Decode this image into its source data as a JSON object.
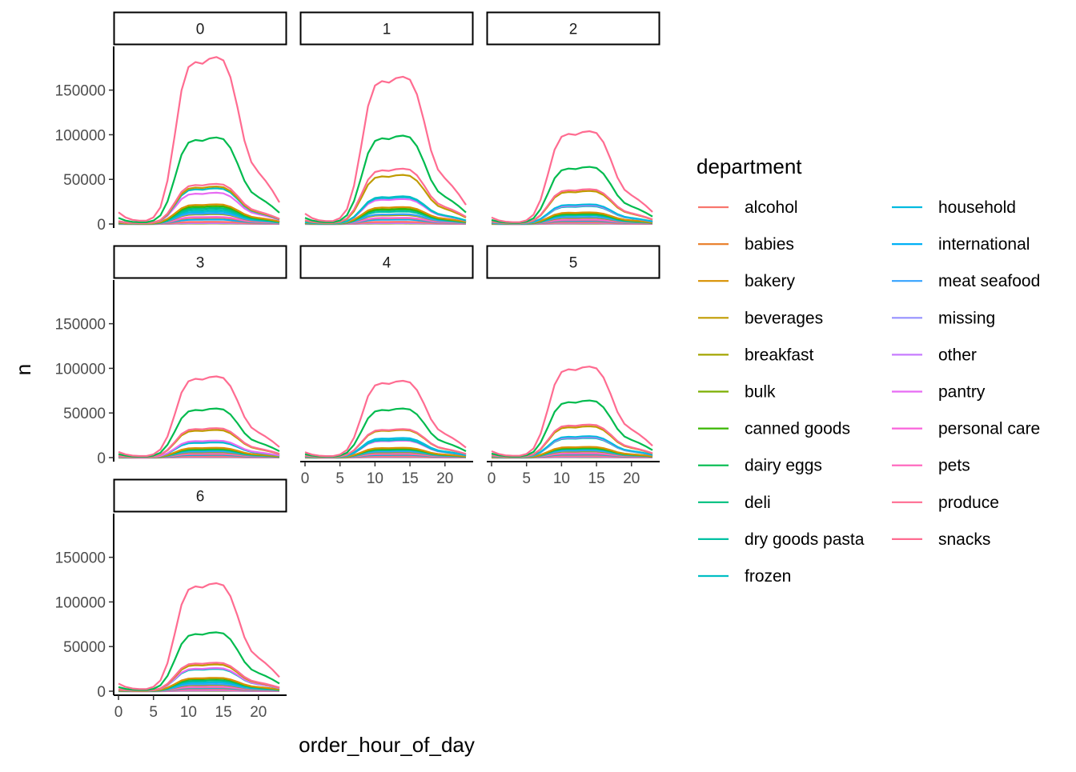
{
  "chart_data": {
    "type": "line",
    "facet_var": "order_dow",
    "facets": [
      "0",
      "1",
      "2",
      "3",
      "4",
      "5",
      "6"
    ],
    "xlabel": "order_hour_of_day",
    "ylabel": "n",
    "x_ticks": [
      "0",
      "5",
      "10",
      "15",
      "20"
    ],
    "y_ticks": [
      "0",
      "50000",
      "100000",
      "150000"
    ],
    "xlim": [
      0,
      23
    ],
    "ylim": [
      0,
      190000
    ],
    "grid": false,
    "legend_title": "department",
    "legend_position": "right",
    "departments": [
      "alcohol",
      "babies",
      "bakery",
      "beverages",
      "breakfast",
      "bulk",
      "canned goods",
      "dairy eggs",
      "deli",
      "dry goods pasta",
      "frozen",
      "household",
      "international",
      "meat seafood",
      "missing",
      "other",
      "pantry",
      "personal care",
      "pets",
      "produce",
      "snacks"
    ],
    "colors": [
      "#F8766D",
      "#EA8331",
      "#D89000",
      "#C09B00",
      "#A3A500",
      "#7CAE00",
      "#39B600",
      "#00BB4E",
      "#00BF7D",
      "#00C1A3",
      "#00BFC4",
      "#00BAE0",
      "#00B0F6",
      "#35A2FF",
      "#9590FF",
      "#C77CFF",
      "#E76BF3",
      "#FA62DB",
      "#FF62BC",
      "#FF6C91",
      "#FF6C91"
    ],
    "hours": [
      0,
      1,
      2,
      3,
      4,
      5,
      6,
      7,
      8,
      9,
      10,
      11,
      12,
      13,
      14,
      15,
      16,
      17,
      18,
      19,
      20,
      21,
      22,
      23
    ],
    "peaks": {
      "0": {
        "produce": 187000,
        "dairy eggs": 97000,
        "snacks": 45000,
        "beverages": 42000,
        "frozen": 40000,
        "pantry": 35000,
        "bakery": 22000,
        "canned goods": 20000,
        "deli": 18000,
        "dry goods pasta": 16000,
        "household": 14000,
        "meat seafood": 12000,
        "breakfast": 11000,
        "personal care": 8000,
        "babies": 7000,
        "international": 5000,
        "alcohol": 2500,
        "pets": 2000,
        "missing": 1500,
        "other": 900,
        "bulk": 500
      },
      "1": {
        "produce": 165000,
        "dairy eggs": 99000,
        "snacks": 62000,
        "beverages": 55000,
        "frozen": 31000,
        "pantry": 28000,
        "bakery": 19000,
        "canned goods": 17000,
        "deli": 16000,
        "dry goods pasta": 14000,
        "household": 30000,
        "meat seafood": 11000,
        "breakfast": 10000,
        "personal care": 7000,
        "babies": 6500,
        "international": 5000,
        "alcohol": 2500,
        "pets": 2000,
        "missing": 1500,
        "other": 900,
        "bulk": 500
      },
      "2": {
        "produce": 104000,
        "dairy eggs": 64000,
        "snacks": 39000,
        "beverages": 37000,
        "frozen": 20000,
        "pantry": 21000,
        "bakery": 13000,
        "canned goods": 12000,
        "deli": 11000,
        "dry goods pasta": 10000,
        "household": 22000,
        "meat seafood": 8000,
        "breakfast": 7000,
        "personal care": 5000,
        "babies": 4500,
        "international": 3500,
        "alcohol": 1800,
        "pets": 1500,
        "missing": 1000,
        "other": 700,
        "bulk": 400
      },
      "3": {
        "produce": 91000,
        "dairy eggs": 55000,
        "snacks": 33000,
        "beverages": 31000,
        "frozen": 18000,
        "pantry": 19000,
        "bakery": 11000,
        "canned goods": 10000,
        "deli": 9500,
        "dry goods pasta": 8500,
        "household": 17000,
        "meat seafood": 7000,
        "breakfast": 6000,
        "personal care": 4500,
        "babies": 4000,
        "international": 3000,
        "alcohol": 1600,
        "pets": 1300,
        "missing": 900,
        "other": 600,
        "bulk": 350
      },
      "4": {
        "produce": 86000,
        "dairy eggs": 55000,
        "snacks": 32000,
        "beverages": 31000,
        "frozen": 20000,
        "pantry": 19000,
        "bakery": 11000,
        "canned goods": 10000,
        "deli": 9500,
        "dry goods pasta": 8500,
        "household": 22000,
        "meat seafood": 7000,
        "breakfast": 6000,
        "personal care": 4500,
        "babies": 4000,
        "international": 3000,
        "alcohol": 1600,
        "pets": 1300,
        "missing": 900,
        "other": 600,
        "bulk": 350
      },
      "5": {
        "produce": 102000,
        "dairy eggs": 64000,
        "snacks": 37000,
        "beverages": 35000,
        "frozen": 22000,
        "pantry": 23000,
        "bakery": 12000,
        "canned goods": 11000,
        "deli": 10500,
        "dry goods pasta": 9500,
        "household": 24000,
        "meat seafood": 8000,
        "breakfast": 7000,
        "personal care": 5000,
        "babies": 4500,
        "international": 3500,
        "alcohol": 2200,
        "pets": 1500,
        "missing": 1000,
        "other": 700,
        "bulk": 400
      },
      "6": {
        "produce": 121000,
        "dairy eggs": 66000,
        "snacks": 32000,
        "beverages": 30000,
        "frozen": 25000,
        "pantry": 26000,
        "bakery": 15000,
        "canned goods": 14000,
        "deli": 12000,
        "dry goods pasta": 10000,
        "household": 10000,
        "meat seafood": 8000,
        "breakfast": 7000,
        "personal care": 5000,
        "babies": 4500,
        "international": 3500,
        "alcohol": 2500,
        "pets": 1500,
        "missing": 1000,
        "other": 700,
        "bulk": 400
      }
    },
    "hour_profile": [
      0.07,
      0.04,
      0.025,
      0.02,
      0.02,
      0.04,
      0.1,
      0.26,
      0.52,
      0.8,
      0.94,
      0.97,
      0.96,
      0.99,
      1.0,
      0.98,
      0.88,
      0.7,
      0.5,
      0.37,
      0.31,
      0.26,
      0.2,
      0.13
    ]
  }
}
